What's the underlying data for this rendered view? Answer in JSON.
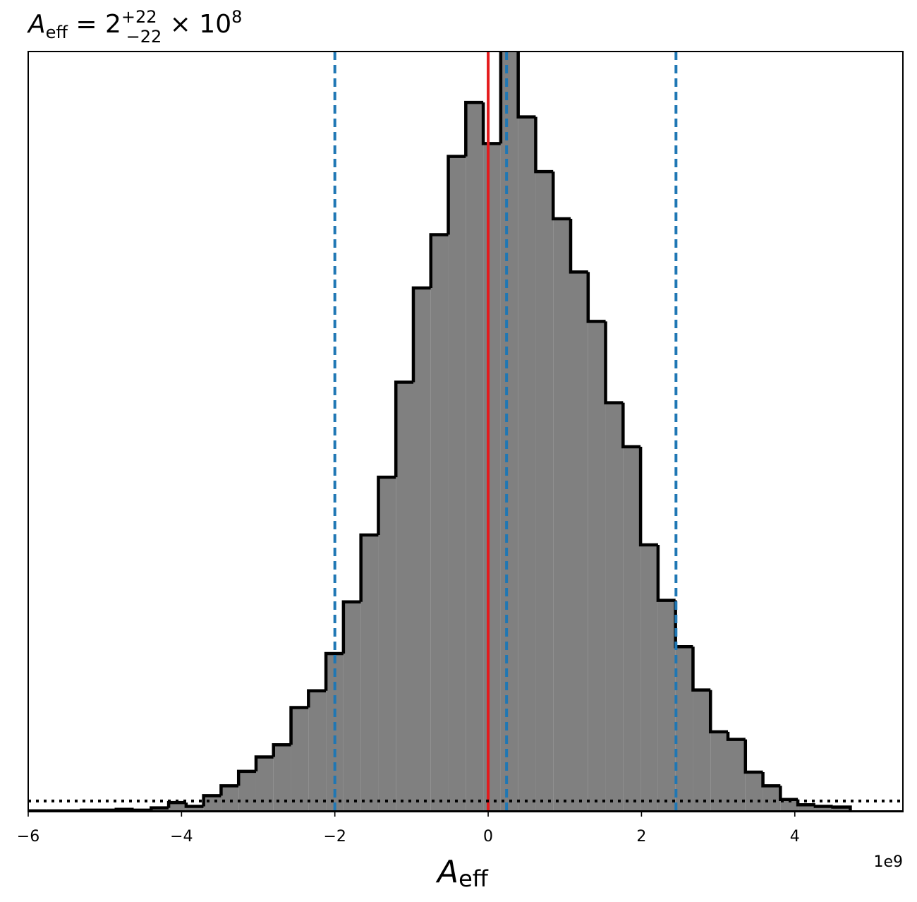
{
  "chart_data": {
    "type": "histogram",
    "title": {
      "symbol": "A",
      "symbol_sub": "eff",
      "text": " = 2",
      "sup": "+22",
      "sub": "−22",
      "tail": " × 10",
      "exp": "8"
    },
    "x_label": {
      "symbol": "A",
      "sub": "eff"
    },
    "x_offset_label": "1e9",
    "bins": [
      -5.992,
      -5.764,
      -5.536,
      -5.308,
      -5.08,
      -4.852,
      -4.624,
      -4.396,
      -4.168,
      -3.94,
      -3.712,
      -3.484,
      -3.256,
      -3.028,
      -2.8,
      -2.572,
      -2.344,
      -2.116,
      -1.888,
      -1.66,
      -1.432,
      -1.204,
      -0.976,
      -0.748,
      -0.52,
      -0.292,
      -0.064,
      0.164,
      0.392,
      0.62,
      0.848,
      1.076,
      1.304,
      1.532,
      1.76,
      1.988,
      2.216,
      2.444,
      2.672,
      2.9,
      3.128,
      3.356,
      3.584,
      3.812,
      4.04,
      4.268,
      4.496,
      4.724
    ],
    "values": [
      0.1,
      0.1,
      0.1,
      0.2,
      0.2,
      0.3,
      0.2,
      0.5,
      1.2,
      0.7,
      2.1,
      3.4,
      5.3,
      7.2,
      8.8,
      13.7,
      15.9,
      20.8,
      27.6,
      36.4,
      44.0,
      56.5,
      68.9,
      75.9,
      86.2,
      93.3,
      87.9,
      101,
      91.4,
      84.2,
      78.0,
      71.0,
      64.5,
      53.8,
      48.0,
      35.1,
      27.8,
      21.7,
      16.0,
      10.5,
      9.5,
      5.2,
      3.4,
      1.6,
      0.9,
      0.7,
      0.6
    ],
    "color": "#808080",
    "edge_color": "#000000",
    "xlim": [
      -6,
      5.41
    ],
    "ylim": [
      0,
      100
    ],
    "xticks": [
      {
        "value": -6,
        "label": "−6"
      },
      {
        "value": -4,
        "label": "−4"
      },
      {
        "value": -2,
        "label": "−2"
      },
      0,
      2,
      4
    ],
    "vlines": [
      {
        "value": 0,
        "color": "#e41a1c",
        "style": "solid"
      },
      {
        "value": -2.0,
        "color": "#1f77b4",
        "style": "dashed"
      },
      {
        "value": 0.24,
        "color": "#1f77b4",
        "style": "dashed"
      },
      {
        "value": 2.45,
        "color": "#1f77b4",
        "style": "dashed"
      }
    ],
    "hlines": [
      {
        "value": 1.4,
        "color": "#000000",
        "style": "dotted"
      }
    ]
  }
}
